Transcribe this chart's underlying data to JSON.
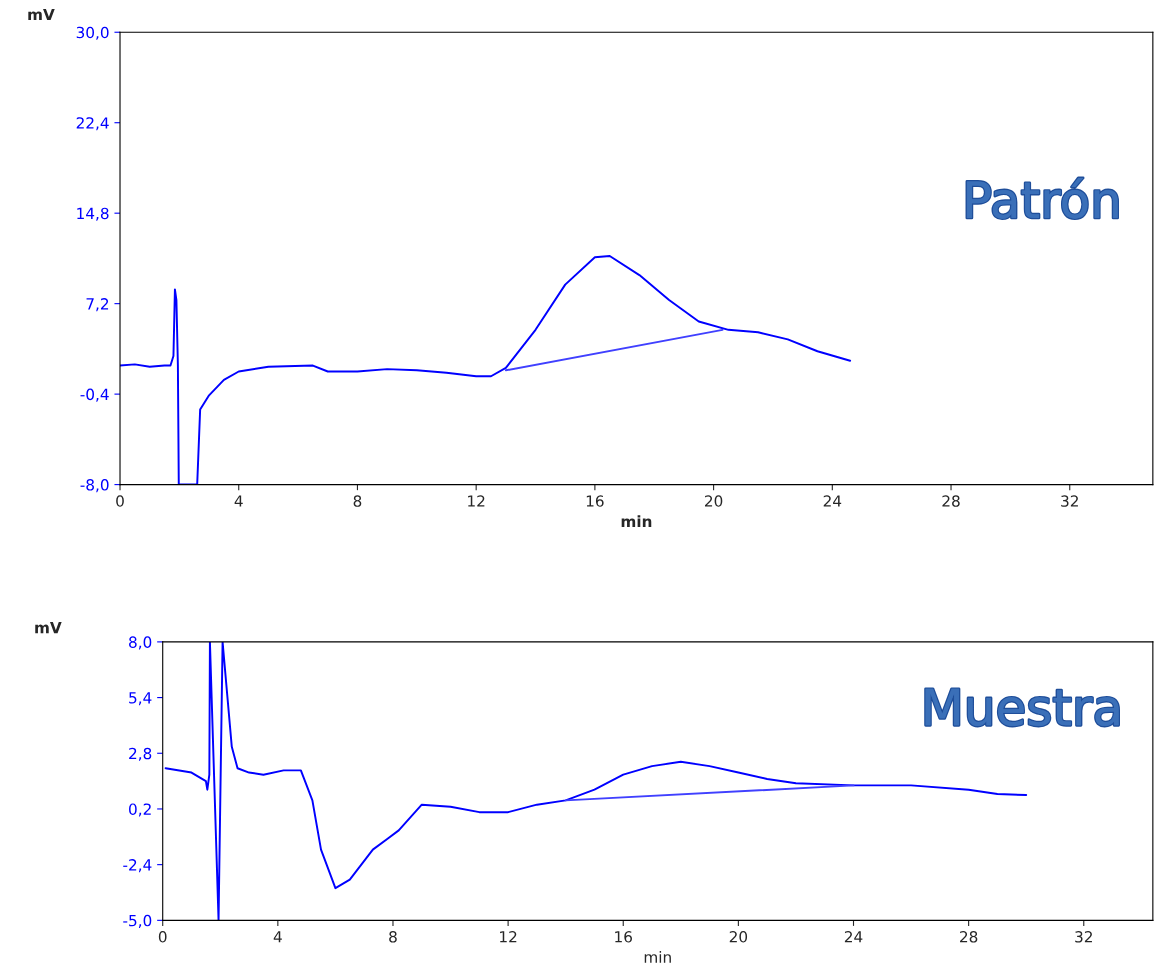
{
  "chart_data": [
    {
      "type": "line",
      "ylabel": "mV",
      "xlabel": "min",
      "annotations": [
        "Patrón"
      ],
      "legend": false,
      "grid": false,
      "xlim": [
        0,
        34.8
      ],
      "xticks": [
        0,
        4,
        8,
        12,
        16,
        20,
        24,
        28,
        32
      ],
      "ylim": [
        -8.0,
        30.0
      ],
      "yticks": [
        {
          "value": 30.0,
          "label": "30,0"
        },
        {
          "value": 22.4,
          "label": "22,4"
        },
        {
          "value": 14.8,
          "label": "14,8"
        },
        {
          "value": 7.2,
          "label": "7,2"
        },
        {
          "value": -0.4,
          "label": "-0,4"
        },
        {
          "value": -8.0,
          "label": "-8,0"
        }
      ],
      "series": [
        {
          "color": "#0000ff",
          "x": [
            0,
            0.5,
            1.0,
            1.5,
            1.7,
            1.8,
            1.85,
            1.9,
            1.95,
            1.98,
            2.6,
            2.7,
            3.0,
            3.5,
            4.0,
            5.0,
            6.5,
            7.0,
            8.0,
            9.0,
            10.0,
            11.0,
            12.0,
            12.5,
            13.0,
            14.0,
            15.0,
            16.0,
            16.5,
            17.5,
            18.5,
            19.5,
            20.5,
            21.5,
            22.5,
            23.5,
            24.6
          ],
          "values": [
            2.0,
            2.1,
            1.9,
            2.0,
            2.0,
            2.8,
            8.4,
            7.5,
            2.0,
            -8.0,
            -8.0,
            -1.7,
            -0.5,
            0.8,
            1.5,
            1.9,
            2.0,
            1.5,
            1.5,
            1.7,
            1.6,
            1.4,
            1.1,
            1.1,
            1.8,
            5.0,
            8.8,
            11.1,
            11.2,
            9.6,
            7.5,
            5.7,
            5.0,
            4.8,
            4.2,
            3.2,
            2.4
          ]
        },
        {
          "color": "#4040ff",
          "x": [
            13.0,
            20.3
          ],
          "values": [
            1.6,
            5.0
          ]
        }
      ]
    },
    {
      "type": "line",
      "ylabel": "mV",
      "xlabel": "min",
      "annotations": [
        "Muestra"
      ],
      "legend": false,
      "grid": false,
      "xlim": [
        0,
        34.4
      ],
      "xticks": [
        0,
        4,
        8,
        12,
        16,
        20,
        24,
        28,
        32
      ],
      "ylim": [
        -5.0,
        8.0
      ],
      "yticks": [
        {
          "value": 8.0,
          "label": "8,0"
        },
        {
          "value": 5.4,
          "label": "5,4"
        },
        {
          "value": 2.8,
          "label": "2,8"
        },
        {
          "value": 0.2,
          "label": "0,2"
        },
        {
          "value": -2.4,
          "label": "-2,4"
        },
        {
          "value": -5.0,
          "label": "-5,0"
        }
      ],
      "series": [
        {
          "color": "#0000ff",
          "x": [
            0.1,
            1.0,
            1.5,
            1.55,
            1.62,
            1.64,
            1.94,
            2.08,
            2.4,
            2.6,
            3.0,
            3.5,
            4.2,
            4.8,
            5.2,
            5.5,
            6.0,
            6.5,
            7.3,
            7.8,
            8.2,
            9.0,
            10.0,
            11.0,
            12.0,
            13.0,
            14.0,
            15.0,
            16.0,
            17.0,
            18.0,
            19.0,
            20.0,
            21.0,
            22.0,
            24.0,
            26.0,
            28.0,
            29.0,
            30.0
          ],
          "values": [
            2.1,
            1.9,
            1.5,
            1.1,
            1.8,
            8.0,
            -5.0,
            8.0,
            3.1,
            2.1,
            1.9,
            1.8,
            2.0,
            2.0,
            0.6,
            -1.7,
            -3.5,
            -3.1,
            -1.7,
            -1.2,
            -0.8,
            0.4,
            0.3,
            0.05,
            0.05,
            0.4,
            0.6,
            1.1,
            1.8,
            2.2,
            2.4,
            2.2,
            1.9,
            1.6,
            1.4,
            1.3,
            1.3,
            1.1,
            0.9,
            0.85
          ]
        },
        {
          "color": "#4040ff",
          "x": [
            14.0,
            24.0
          ],
          "values": [
            0.6,
            1.3
          ]
        }
      ]
    }
  ]
}
